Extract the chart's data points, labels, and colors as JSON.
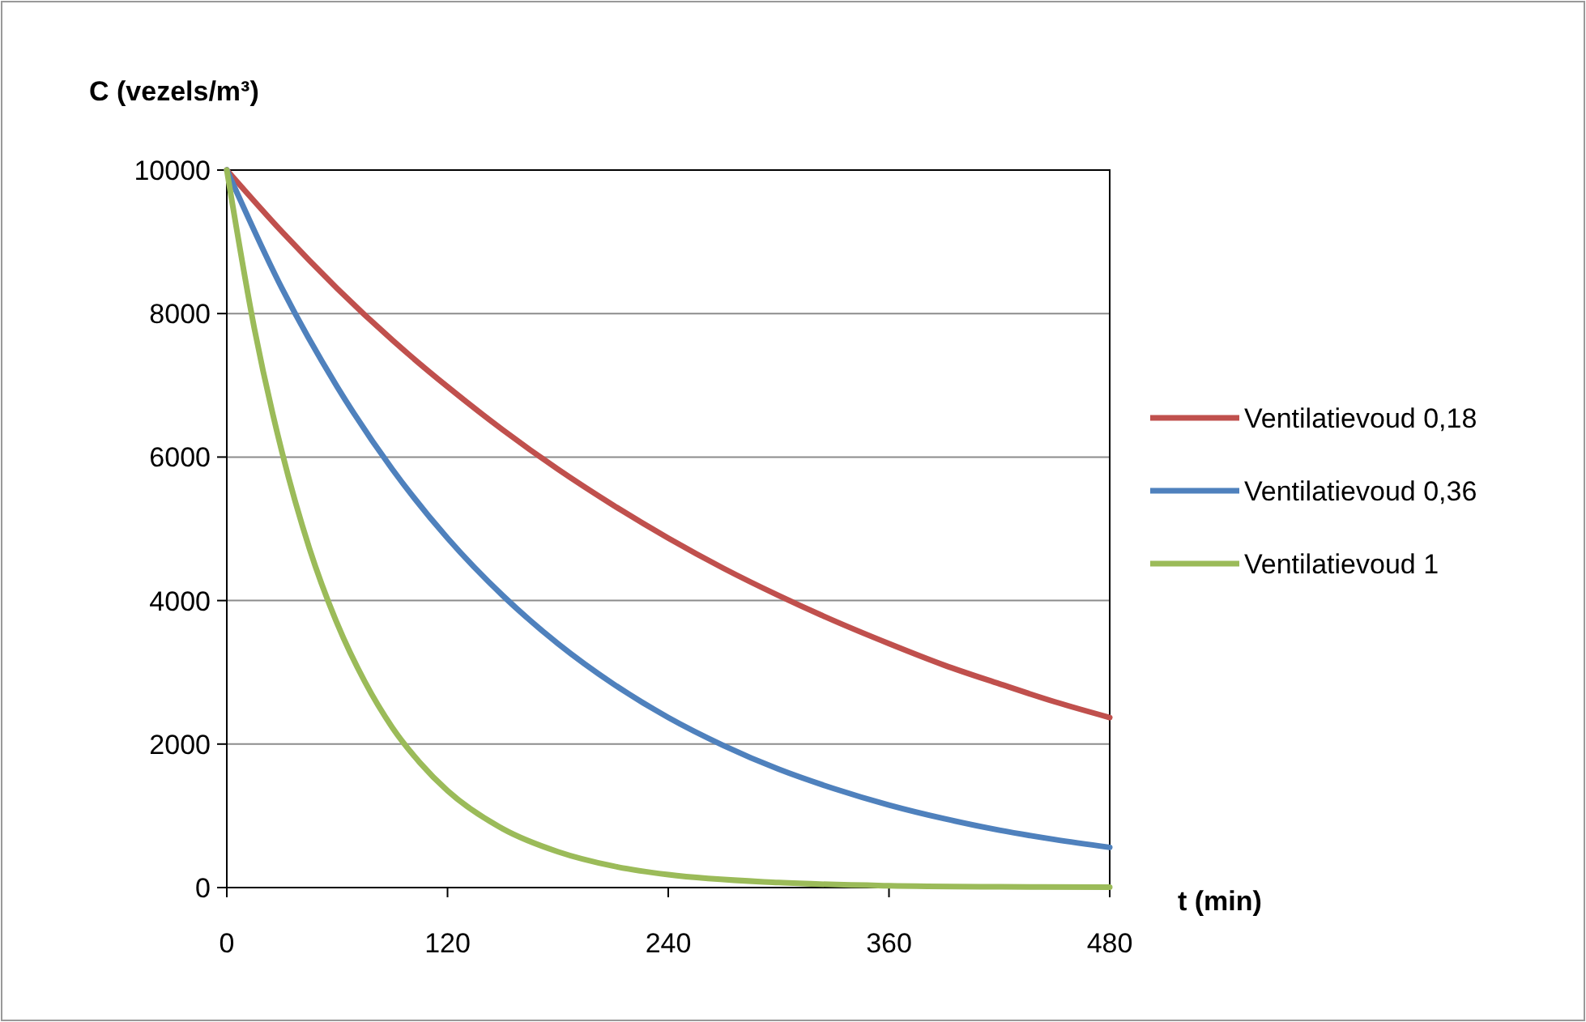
{
  "chart_data": {
    "type": "line",
    "ylabel": "C (vezels/m³)",
    "xlabel": "t (min)",
    "xlim": [
      0,
      480
    ],
    "xticks": [
      0,
      120,
      240,
      360,
      480
    ],
    "ylim": [
      0,
      10000
    ],
    "yticks": [
      0,
      2000,
      4000,
      6000,
      8000,
      10000
    ],
    "grid": "y",
    "legend": "right",
    "marker": "none",
    "line_style": "solid",
    "series": [
      {
        "name": "Ventilatievoud 0,18",
        "color": "#c0504d",
        "x": [
          0,
          30,
          60,
          90,
          120,
          150,
          180,
          210,
          240,
          270,
          300,
          330,
          360,
          390,
          420,
          450,
          480
        ],
        "values": [
          10000,
          9140,
          8350,
          7630,
          6980,
          6380,
          5830,
          5330,
          4870,
          4450,
          4070,
          3720,
          3400,
          3100,
          2840,
          2590,
          2370
        ]
      },
      {
        "name": "Ventilatievoud 0,36",
        "color": "#4f81bd",
        "x": [
          0,
          30,
          60,
          90,
          120,
          150,
          180,
          210,
          240,
          270,
          300,
          330,
          360,
          390,
          420,
          450,
          480
        ],
        "values": [
          10000,
          8350,
          6980,
          5830,
          4870,
          4070,
          3400,
          2840,
          2370,
          1980,
          1650,
          1380,
          1150,
          960,
          800,
          670,
          560
        ]
      },
      {
        "name": "Ventilatievoud 1",
        "color": "#9bbb59",
        "x": [
          0,
          15,
          30,
          45,
          60,
          75,
          90,
          105,
          120,
          150,
          180,
          210,
          240,
          300,
          360,
          420,
          480
        ],
        "values": [
          10000,
          7790,
          6070,
          4720,
          3680,
          2870,
          2230,
          1740,
          1350,
          820,
          500,
          300,
          180,
          70,
          25,
          10,
          5
        ]
      }
    ]
  }
}
